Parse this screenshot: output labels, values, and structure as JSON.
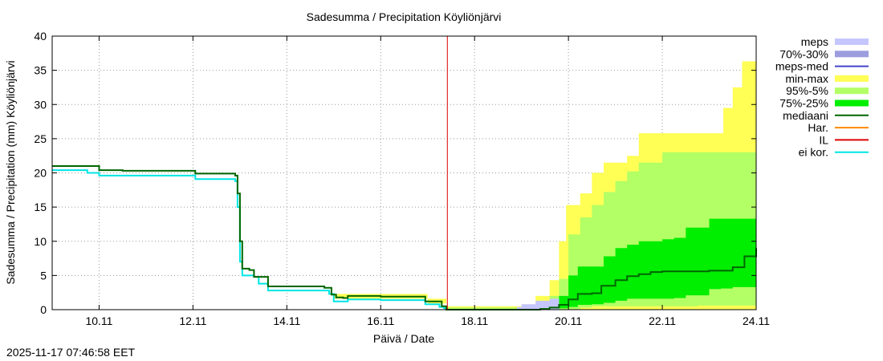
{
  "chart_data": {
    "type": "line",
    "title": "Sadesumma / Precipitation  Köyliönjärvi",
    "xlabel": "Päivä / Date",
    "ylabel": "Sadesumma / Precipitation (mm)  Köyliönjärvi",
    "xlim": [
      9.0,
      24.0
    ],
    "ylim": [
      0,
      40
    ],
    "x_ticks": [
      {
        "x": 10,
        "label": "10.11"
      },
      {
        "x": 12,
        "label": "12.11"
      },
      {
        "x": 14,
        "label": "14.11"
      },
      {
        "x": 16,
        "label": "16.11"
      },
      {
        "x": 18,
        "label": "18.11"
      },
      {
        "x": 20,
        "label": "20.11"
      },
      {
        "x": 22,
        "label": "22.11"
      },
      {
        "x": 24,
        "label": "24.11"
      }
    ],
    "y_ticks": [
      0,
      5,
      10,
      15,
      20,
      25,
      30,
      35,
      40
    ],
    "grid": true,
    "legend_position": "outside-right",
    "now_marker_x": 17.42,
    "legend": [
      {
        "label": "meps",
        "kind": "box",
        "color": "#c6c6ff"
      },
      {
        "label": "70%-30%",
        "kind": "box",
        "color": "#9c9cde"
      },
      {
        "label": "meps-med",
        "kind": "line",
        "color": "#4444cc"
      },
      {
        "label": "min-max",
        "kind": "box",
        "color": "#ffff55"
      },
      {
        "label": "95%-5%",
        "kind": "box",
        "color": "#b3ff66"
      },
      {
        "label": "75%-25%",
        "kind": "box",
        "color": "#00ee00"
      },
      {
        "label": "mediaani",
        "kind": "line",
        "color": "#006600"
      },
      {
        "label": "Har.",
        "kind": "line",
        "color": "#ff8800"
      },
      {
        "label": "IL",
        "kind": "line",
        "color": "#dd0000"
      },
      {
        "label": "ei kor.",
        "kind": "line",
        "color": "#00e5e5"
      }
    ],
    "series": [
      {
        "name": "min-max",
        "type": "band",
        "color": "#ffff55",
        "x": [
          15.0,
          16.9,
          17.0,
          17.4,
          19.2,
          19.3,
          19.6,
          19.7,
          19.8,
          19.95,
          20.25,
          20.5,
          20.75,
          21.0,
          21.25,
          21.5,
          21.75,
          22.0,
          22.3,
          22.6,
          22.8,
          23.0,
          23.3,
          23.5,
          23.7,
          24.0
        ],
        "upper": [
          2.3,
          2.3,
          1.6,
          0.5,
          0.6,
          2.0,
          4.3,
          4.3,
          10.0,
          15.3,
          17.0,
          20.0,
          21.5,
          21.5,
          22.5,
          25.8,
          25.8,
          25.8,
          25.8,
          25.8,
          25.8,
          25.8,
          29.5,
          32.5,
          36.3,
          36.3
        ],
        "lower": [
          1.6,
          1.6,
          0.9,
          0.0,
          0.0,
          0.0,
          0.0,
          0.0,
          0.0,
          0.0,
          0.0,
          0.0,
          0.0,
          0.0,
          0.0,
          0.0,
          0.0,
          0.0,
          0.0,
          0.0,
          0.0,
          0.0,
          0.0,
          0.0,
          0.0,
          0.0
        ]
      },
      {
        "name": "95%-5%",
        "type": "band",
        "color": "#b3ff66",
        "x": [
          17.4,
          19.2,
          19.4,
          19.6,
          19.8,
          20.0,
          20.25,
          20.5,
          20.75,
          21.0,
          21.25,
          21.5,
          21.75,
          22.0,
          22.25,
          22.5,
          22.75,
          23.0,
          23.25,
          23.5,
          23.75,
          24.0
        ],
        "upper": [
          0.3,
          0.3,
          0.8,
          2.0,
          4.5,
          11.0,
          13.5,
          15.3,
          17.2,
          18.8,
          20.2,
          21.5,
          21.5,
          23.0,
          23.0,
          23.0,
          23.0,
          23.0,
          23.0,
          23.0,
          23.0,
          26.5
        ],
        "lower": [
          0.0,
          0.0,
          0.0,
          0.0,
          0.0,
          0.0,
          0.3,
          0.5,
          0.5,
          0.5,
          0.5,
          0.5,
          0.5,
          0.5,
          0.5,
          0.5,
          0.6,
          0.6,
          0.6,
          0.6,
          0.6,
          0.6
        ]
      },
      {
        "name": "75%-25%",
        "type": "band",
        "color": "#00ee00",
        "x": [
          19.3,
          19.6,
          19.8,
          20.0,
          20.2,
          20.5,
          20.75,
          21.0,
          21.25,
          21.5,
          21.75,
          22.0,
          22.25,
          22.5,
          22.75,
          23.0,
          23.25,
          23.5,
          23.75,
          24.0
        ],
        "upper": [
          0.2,
          0.8,
          2.0,
          5.0,
          6.3,
          6.3,
          7.8,
          9.0,
          9.5,
          10.0,
          10.0,
          10.3,
          10.5,
          12.0,
          12.0,
          13.3,
          13.3,
          13.3,
          13.3,
          14.8
        ],
        "lower": [
          0.0,
          0.0,
          0.2,
          0.4,
          0.7,
          0.8,
          1.0,
          1.3,
          1.6,
          1.6,
          1.6,
          1.6,
          1.7,
          2.1,
          2.1,
          3.0,
          3.1,
          3.3,
          3.3,
          3.8
        ]
      },
      {
        "name": "meps",
        "type": "band",
        "color": "#c6c6ff",
        "x": [
          18.9,
          19.0,
          19.3,
          19.6,
          19.8
        ],
        "upper": [
          0.4,
          0.8,
          1.3,
          1.6,
          0.3
        ],
        "lower": [
          0.0,
          0.0,
          0.0,
          0.0,
          0.0
        ]
      },
      {
        "name": "ei kor.",
        "type": "line",
        "color": "#00e5e5",
        "x": [
          9.0,
          9.6,
          9.75,
          10.0,
          10.5,
          12.0,
          12.05,
          12.6,
          12.9,
          12.95,
          13.0,
          13.05,
          13.3,
          13.4,
          13.6,
          14.0,
          14.4,
          14.8,
          14.9,
          15.0,
          15.2,
          15.3,
          16.0,
          16.5,
          16.9,
          16.95,
          17.2,
          17.25,
          17.35,
          17.4
        ],
        "y": [
          20.4,
          20.4,
          20.0,
          19.6,
          19.6,
          19.6,
          19.1,
          19.1,
          18.8,
          15.0,
          7.0,
          5.0,
          4.8,
          3.8,
          2.8,
          2.8,
          2.8,
          2.8,
          2.3,
          1.2,
          1.2,
          1.5,
          1.4,
          1.4,
          1.4,
          0.8,
          0.8,
          0.4,
          0.2,
          0.1
        ]
      },
      {
        "name": "mediaani",
        "type": "line",
        "color": "#006600",
        "x": [
          9.0,
          9.75,
          10.0,
          10.5,
          12.0,
          12.05,
          12.5,
          12.9,
          12.95,
          13.0,
          13.05,
          13.2,
          13.3,
          13.6,
          14.0,
          14.7,
          14.8,
          14.95,
          15.05,
          15.2,
          15.3,
          16.0,
          16.5,
          16.9,
          16.95,
          17.2,
          17.3,
          17.4,
          18.0,
          19.0,
          19.4,
          19.6,
          19.8,
          20.0,
          20.2,
          20.5,
          20.7,
          21.0,
          21.25,
          21.5,
          21.75,
          22.0,
          22.5,
          23.0,
          23.5,
          23.75,
          24.0
        ],
        "y": [
          21.0,
          21.0,
          20.4,
          20.3,
          20.3,
          19.9,
          19.9,
          19.6,
          17.0,
          10.0,
          6.0,
          5.8,
          4.8,
          3.4,
          3.4,
          3.4,
          3.2,
          2.2,
          1.8,
          1.7,
          2.0,
          1.9,
          1.9,
          1.9,
          1.2,
          1.2,
          0.5,
          0.0,
          0.0,
          0.0,
          0.1,
          0.3,
          0.7,
          1.5,
          2.3,
          2.4,
          3.5,
          4.3,
          4.9,
          5.2,
          5.5,
          5.6,
          5.6,
          5.7,
          6.2,
          7.8,
          9.0
        ]
      }
    ]
  },
  "footer": {
    "timestamp": "2025-11-17 07:46:58 EET"
  }
}
